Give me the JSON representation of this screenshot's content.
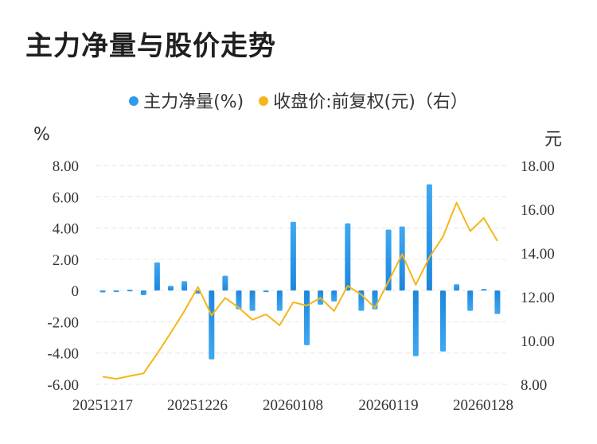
{
  "title": "主力净量与股价走势",
  "legend": [
    {
      "label": "主力净量(%)",
      "color": "#2f9bea"
    },
    {
      "label": "收盘价:前复权(元)（右）",
      "color": "#f5b619"
    }
  ],
  "chart_data": {
    "type": "bar+line",
    "title": "主力净量与股价走势",
    "left_axis": {
      "unit": "%",
      "ylim": [
        -6,
        8
      ],
      "ticks": [
        "8.00",
        "6.00",
        "4.00",
        "2.00",
        "0",
        "-2.00",
        "-4.00",
        "-6.00"
      ]
    },
    "right_axis": {
      "unit": "元",
      "ylim": [
        8,
        18
      ],
      "ticks": [
        "18.00",
        "16.00",
        "14.00",
        "12.00",
        "10.00",
        "8.00"
      ]
    },
    "x_tick_labels": [
      "20251217",
      "20251226",
      "20260108",
      "20260119",
      "20260128"
    ],
    "grid": true,
    "legend_position": "top",
    "series": [
      {
        "name": "主力净量(%)",
        "type": "bar",
        "axis": "left",
        "color": "#2f9bea",
        "values": [
          -0.12,
          -0.05,
          0.05,
          -0.3,
          1.8,
          0.3,
          0.6,
          -0.2,
          -4.4,
          0.95,
          -1.2,
          -1.3,
          -0.05,
          -1.3,
          4.4,
          -3.5,
          -0.9,
          -0.7,
          4.3,
          -1.3,
          -1.2,
          3.9,
          4.1,
          -4.2,
          6.8,
          -3.9,
          0.4,
          -1.3,
          0.1,
          -1.5
        ]
      },
      {
        "name": "收盘价:前复权(元)（右）",
        "type": "line",
        "axis": "right",
        "color": "#f5b619",
        "values": [
          8.35,
          8.25,
          8.38,
          8.5,
          9.4,
          10.35,
          11.35,
          12.45,
          11.15,
          11.95,
          11.5,
          10.95,
          11.2,
          10.7,
          11.75,
          11.6,
          11.95,
          11.35,
          12.5,
          12.1,
          11.5,
          12.7,
          13.95,
          12.55,
          13.8,
          14.75,
          16.3,
          15.0,
          15.6,
          14.55
        ]
      }
    ]
  }
}
